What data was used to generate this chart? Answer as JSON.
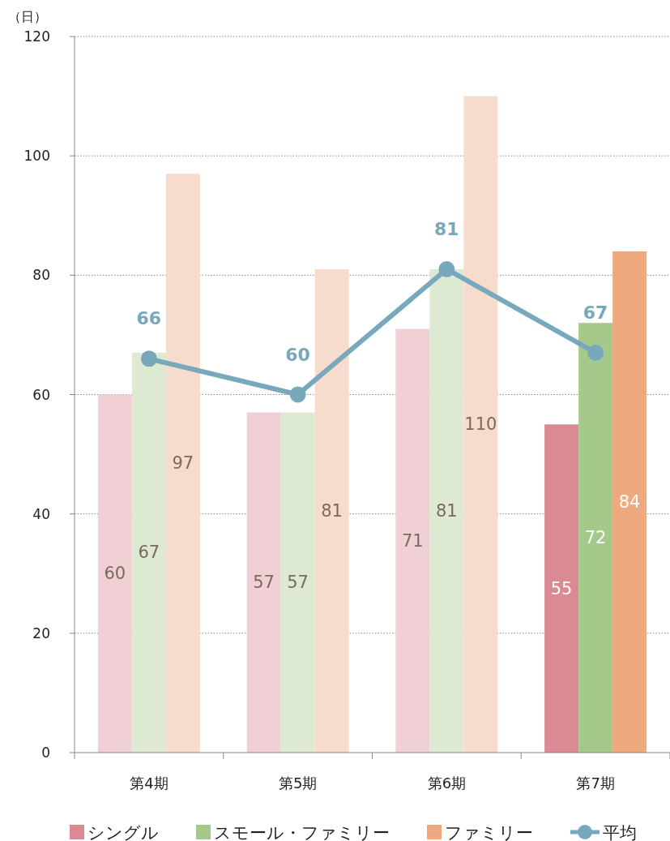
{
  "chart_data": {
    "type": "bar",
    "ylabel": "（日）",
    "categories": [
      "第4期",
      "第5期",
      "第6期",
      "第7期"
    ],
    "series": [
      {
        "name": "シングル",
        "color": "#db8a93",
        "colors": [
          "#f0d0d4",
          "#f0d0d4",
          "#f0d0d4",
          "#db8a93"
        ],
        "values": [
          60,
          57,
          71,
          55
        ]
      },
      {
        "name": "スモール・ファミリー",
        "color": "#a5c98a",
        "colors": [
          "#dde9d0",
          "#dde9d0",
          "#dde9d0",
          "#a5c98a"
        ],
        "values": [
          67,
          57,
          81,
          72
        ]
      },
      {
        "name": "ファミリー",
        "color": "#eeaa7e",
        "colors": [
          "#f7dccd",
          "#f7dccd",
          "#f7dccd",
          "#eeaa7e"
        ],
        "values": [
          97,
          81,
          110,
          84
        ]
      },
      {
        "name": "平均",
        "type": "line",
        "color": "#78a8bc",
        "marker": "circle",
        "values": [
          66,
          60,
          81,
          67
        ]
      }
    ],
    "ylim": [
      0,
      120
    ],
    "yticks": [
      0,
      20,
      40,
      60,
      80,
      100,
      120
    ],
    "grid": "y",
    "data_labels": true,
    "legend": "bottom"
  }
}
